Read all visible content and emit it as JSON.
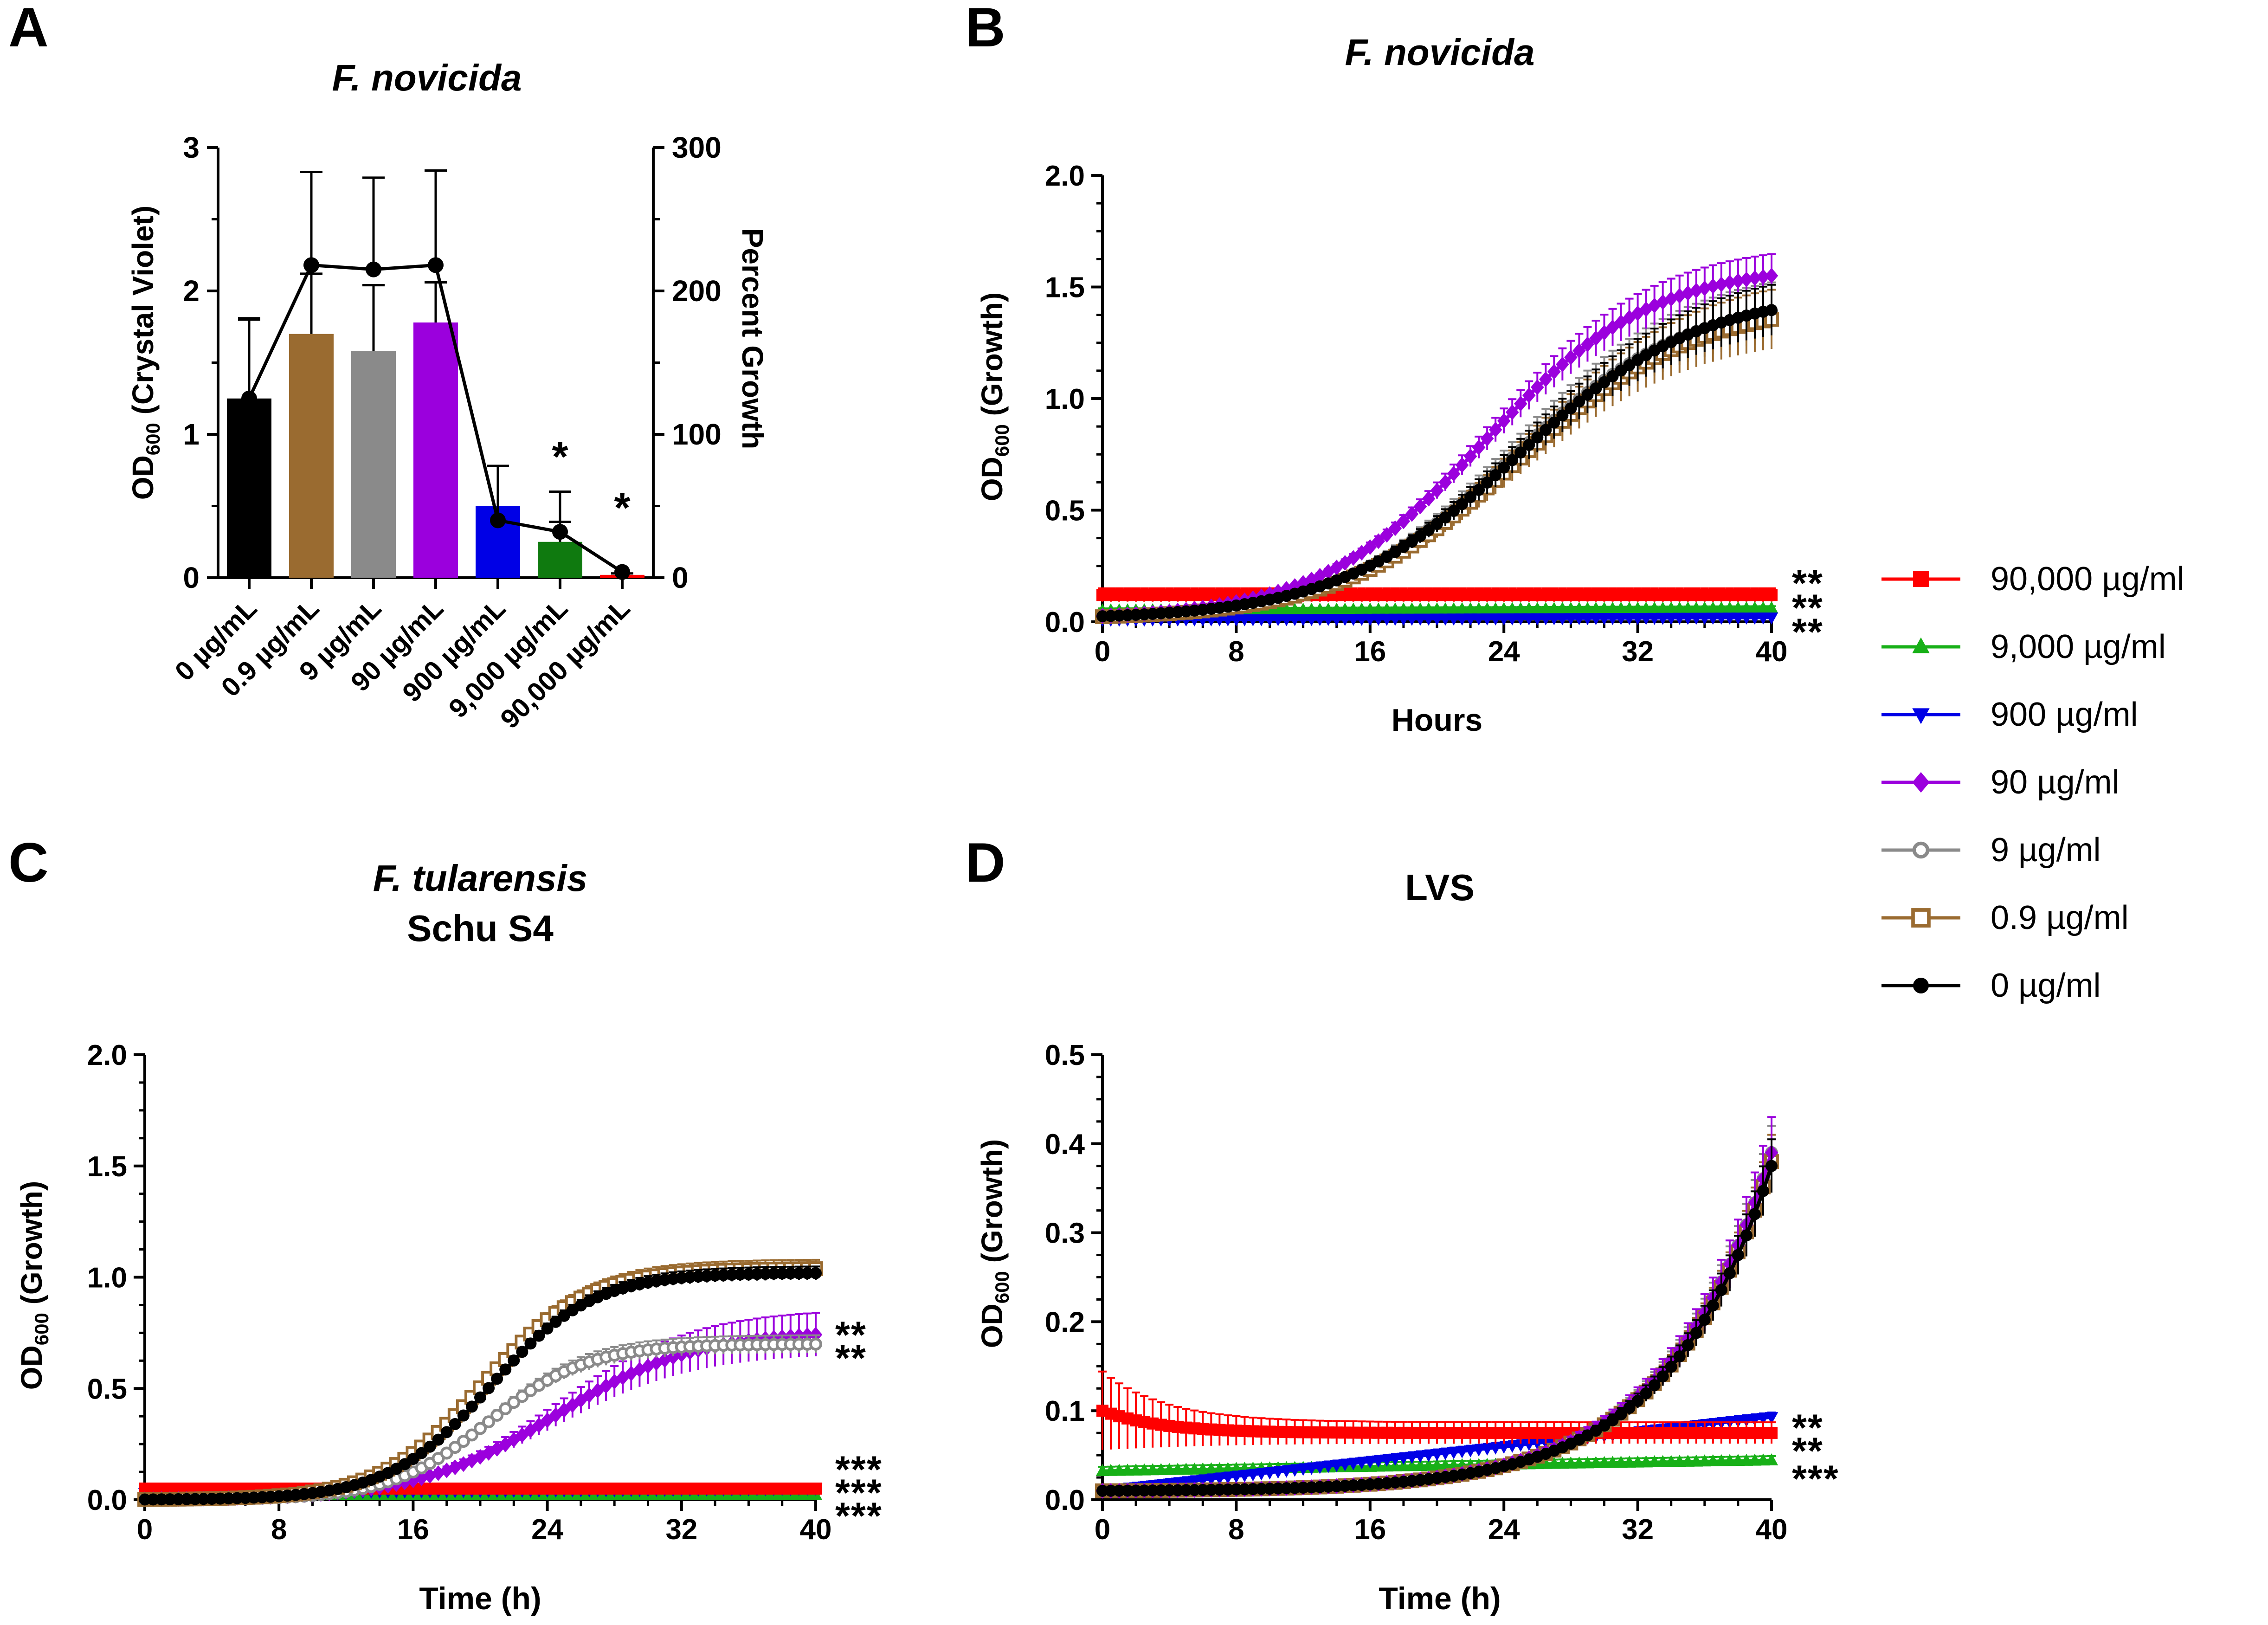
{
  "colors": {
    "c90000": "#ff0000",
    "c9000": "#17b017",
    "c900": "#0000e6",
    "c90": "#9b00dd",
    "c9": "#8a8a8a",
    "c09": "#9a6b30",
    "c0": "#000000",
    "bar_green": "#0f7a0f"
  },
  "legend": {
    "entries": [
      {
        "label": "90,000 µg/ml",
        "color": "#ff0000",
        "marker": "square-filled"
      },
      {
        "label": "9,000 µg/ml",
        "color": "#17b017",
        "marker": "triangle-up"
      },
      {
        "label": "900 µg/ml",
        "color": "#0000e6",
        "marker": "triangle-down"
      },
      {
        "label": "90 µg/ml",
        "color": "#9b00dd",
        "marker": "diamond"
      },
      {
        "label": "9 µg/ml",
        "color": "#8a8a8a",
        "marker": "circle-open"
      },
      {
        "label": "0.9 µg/ml",
        "color": "#9a6b30",
        "marker": "square-open"
      },
      {
        "label": "0 µg/ml",
        "color": "#000000",
        "marker": "circle-filled"
      }
    ]
  },
  "chart_data": [
    {
      "panel": "A",
      "type": "bar",
      "title": "F. novicida",
      "ylabel": "OD600 (Crystal Violet)",
      "y2label": "Percent Growth",
      "ylim": [
        0,
        3
      ],
      "y2lim": [
        0,
        300
      ],
      "yticks": [
        "0",
        "1",
        "2",
        "3"
      ],
      "y2ticks": [
        "0",
        "100",
        "200",
        "300"
      ],
      "categories": [
        "0 µg/mL",
        "0.9 µg/mL",
        "9 µg/mL",
        "90 µg/mL",
        "900 µg/mL",
        "9,000 µg/mL",
        "90,000 µg/mL"
      ],
      "values": [
        1.25,
        1.7,
        1.58,
        1.78,
        0.5,
        0.25,
        0.02
      ],
      "errors": [
        0.56,
        0.42,
        0.46,
        0.28,
        0.28,
        0.14,
        0.01
      ],
      "bar_colors": [
        "#000000",
        "#9a6b30",
        "#8a8a8a",
        "#9b00dd",
        "#0000e6",
        "#0f7a0f",
        "#ff0000"
      ],
      "percent_growth": {
        "values": [
          125,
          218,
          215,
          218,
          40,
          32,
          4
        ],
        "errors": [
          55,
          65,
          64,
          66,
          38,
          28,
          0
        ]
      },
      "annotations": [
        {
          "category": "9,000 µg/mL",
          "text": "*",
          "color": "#0f7a0f"
        },
        {
          "category": "90,000 µg/mL",
          "text": "*",
          "color": "#ff0000"
        }
      ]
    },
    {
      "panel": "B",
      "type": "line",
      "title": "F. novicida",
      "xlabel": "Hours",
      "ylabel": "OD600 (Growth)",
      "xlim": [
        0,
        40
      ],
      "ylim": [
        0,
        2.0
      ],
      "xticks": [
        "0",
        "8",
        "16",
        "24",
        "32",
        "40"
      ],
      "yticks": [
        "0.0",
        "0.5",
        "1.0",
        "1.5",
        "2.0"
      ],
      "series": [
        {
          "name": "90,000 µg/ml",
          "color": "#ff0000",
          "curve": "flat",
          "base": 0.12,
          "end": 0.12,
          "err": 0.03
        },
        {
          "name": "9,000 µg/ml",
          "color": "#17b017",
          "curve": "flat",
          "base": 0.05,
          "end": 0.06,
          "err": 0.01
        },
        {
          "name": "900 µg/ml",
          "color": "#0000e6",
          "curve": "flat",
          "base": 0.01,
          "end": 0.02,
          "err": 0.01
        },
        {
          "name": "9 µg/ml",
          "color": "#8a8a8a",
          "curve": "logistic",
          "base": 0.01,
          "max": 1.46,
          "mid": 24.5,
          "rate": 0.19,
          "err": 0.14
        },
        {
          "name": "0.9 µg/ml",
          "color": "#9a6b30",
          "curve": "logistic",
          "base": 0.01,
          "max": 1.43,
          "mid": 24.8,
          "rate": 0.19,
          "err": 0.14
        },
        {
          "name": "90 µg/ml",
          "color": "#9b00dd",
          "curve": "logistic",
          "base": 0.01,
          "max": 1.6,
          "mid": 22.8,
          "rate": 0.2,
          "err": 0.1
        },
        {
          "name": "0 µg/ml",
          "color": "#000000",
          "curve": "logistic",
          "base": 0.01,
          "max": 1.48,
          "mid": 24.8,
          "rate": 0.185,
          "err": 0.12
        }
      ],
      "annotations": [
        {
          "text": "**",
          "color": "#ff0000"
        },
        {
          "text": "**",
          "color": "#17b017"
        },
        {
          "text": "**",
          "color": "#0000e6"
        }
      ]
    },
    {
      "panel": "C",
      "type": "line",
      "title": "F. tularensis",
      "subtitle": "Schu S4",
      "xlabel": "Time (h)",
      "ylabel": "OD600 (Growth)",
      "xlim": [
        0,
        40
      ],
      "ylim": [
        0,
        2.0
      ],
      "xticks": [
        "0",
        "8",
        "16",
        "24",
        "32",
        "40"
      ],
      "yticks": [
        "0.0",
        "0.5",
        "1.0",
        "1.5",
        "2.0"
      ],
      "series": [
        {
          "name": "9,000 µg/ml",
          "color": "#17b017",
          "curve": "flat",
          "base": 0.02,
          "end": 0.02,
          "err": 0.005
        },
        {
          "name": "900 µg/ml",
          "color": "#0000e6",
          "curve": "flat",
          "base": 0.03,
          "end": 0.05,
          "err": 0.01
        },
        {
          "name": "90,000 µg/ml",
          "color": "#ff0000",
          "curve": "flat",
          "base": 0.05,
          "end": 0.05,
          "err": 0.01
        },
        {
          "name": "90 µg/ml",
          "color": "#9b00dd",
          "curve": "logistic",
          "base": 0.0,
          "max": 0.76,
          "mid": 24.5,
          "rate": 0.24,
          "err": 0.1
        },
        {
          "name": "9 µg/ml",
          "color": "#8a8a8a",
          "curve": "logistic",
          "base": 0.0,
          "max": 0.7,
          "mid": 20.5,
          "rate": 0.34,
          "err": 0.04
        },
        {
          "name": "0.9 µg/ml",
          "color": "#9a6b30",
          "curve": "logistic",
          "base": 0.0,
          "max": 1.04,
          "mid": 20.2,
          "rate": 0.33,
          "err": 0.04
        },
        {
          "name": "0 µg/ml",
          "color": "#000000",
          "curve": "logistic",
          "base": 0.0,
          "max": 1.02,
          "mid": 20.6,
          "rate": 0.33,
          "err": 0.03
        }
      ],
      "annotations": [
        {
          "text": "**",
          "color": "#9b00dd"
        },
        {
          "text": "**",
          "color": "#8a8a8a"
        },
        {
          "text": "***",
          "color": "#0000e6"
        },
        {
          "text": "***",
          "color": "#17b017"
        },
        {
          "text": "***",
          "color": "#ff0000"
        }
      ]
    },
    {
      "panel": "D",
      "type": "line",
      "title": "LVS",
      "xlabel": "Time (h)",
      "ylabel": "OD600 (Growth)",
      "xlim": [
        0,
        40
      ],
      "ylim": [
        0,
        0.5
      ],
      "xticks": [
        "0",
        "8",
        "16",
        "24",
        "32",
        "40"
      ],
      "yticks": [
        "0.0",
        "0.1",
        "0.2",
        "0.3",
        "0.4",
        "0.5"
      ],
      "series": [
        {
          "name": "9,000 µg/ml",
          "color": "#17b017",
          "curve": "flat",
          "base": 0.032,
          "end": 0.044,
          "err": 0.005
        },
        {
          "name": "900 µg/ml",
          "color": "#0000e6",
          "curve": "flat",
          "base": 0.01,
          "end": 0.093,
          "err": 0.005
        },
        {
          "name": "90,000 µg/ml",
          "color": "#ff0000",
          "curve": "decay",
          "base": 0.1,
          "end": 0.075,
          "err": 0.02
        },
        {
          "name": "9 µg/ml",
          "color": "#8a8a8a",
          "curve": "exp",
          "base": 0.01,
          "end": 0.39,
          "err": 0.03
        },
        {
          "name": "0.9 µg/ml",
          "color": "#9a6b30",
          "curve": "exp",
          "base": 0.01,
          "end": 0.38,
          "err": 0.03
        },
        {
          "name": "90 µg/ml",
          "color": "#9b00dd",
          "curve": "exp",
          "base": 0.01,
          "end": 0.39,
          "err": 0.04
        },
        {
          "name": "0 µg/ml",
          "color": "#000000",
          "curve": "exp",
          "base": 0.01,
          "end": 0.375,
          "err": 0.03
        }
      ],
      "annotations": [
        {
          "text": "**",
          "color": "#0000e6"
        },
        {
          "text": "**",
          "color": "#ff0000"
        },
        {
          "text": "***",
          "color": "#17b017"
        }
      ]
    }
  ]
}
